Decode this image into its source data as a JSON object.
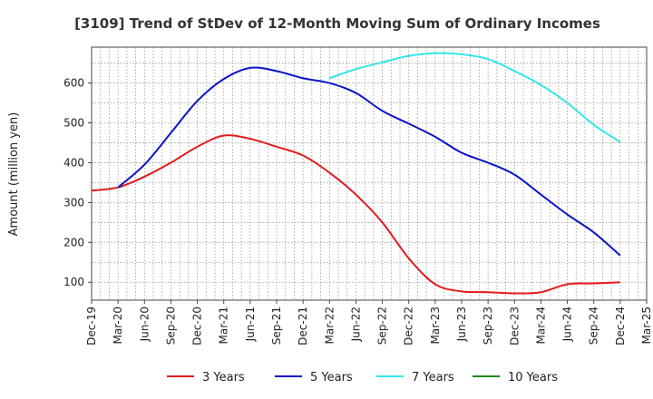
{
  "chart_data": {
    "type": "line",
    "title": "[3109]  Trend of StDev of 12-Month Moving Sum of Ordinary Incomes",
    "xlabel": "",
    "ylabel": "Amount (million yen)",
    "ylim": [
      55,
      690
    ],
    "yticks": [
      100,
      200,
      300,
      400,
      500,
      600
    ],
    "categories": [
      "Dec-19",
      "Mar-20",
      "Jun-20",
      "Sep-20",
      "Dec-20",
      "Mar-21",
      "Jun-21",
      "Sep-21",
      "Dec-21",
      "Mar-22",
      "Jun-22",
      "Sep-22",
      "Dec-22",
      "Mar-23",
      "Jun-23",
      "Sep-23",
      "Dec-23",
      "Mar-24",
      "Jun-24",
      "Sep-24",
      "Dec-24",
      "Mar-25"
    ],
    "grid": true,
    "legend_position": "bottom",
    "series": [
      {
        "name": "3 Years",
        "color": "#e31a1c",
        "values": [
          330,
          338,
          365,
          400,
          440,
          468,
          460,
          440,
          418,
          375,
          320,
          250,
          160,
          95,
          77,
          75,
          72,
          75,
          95,
          97,
          100,
          null
        ]
      },
      {
        "name": "5 Years",
        "color": "#0a14c8",
        "values": [
          null,
          338,
          395,
          475,
          555,
          610,
          638,
          630,
          612,
          600,
          575,
          530,
          498,
          465,
          425,
          400,
          370,
          320,
          270,
          225,
          167,
          null
        ]
      },
      {
        "name": "7 Years",
        "color": "#33e6e6",
        "values": [
          null,
          null,
          null,
          null,
          null,
          null,
          null,
          null,
          null,
          612,
          635,
          652,
          668,
          675,
          672,
          660,
          630,
          595,
          550,
          495,
          452,
          null
        ]
      },
      {
        "name": "10 Years",
        "color": "#1a8a1a",
        "values": [
          null,
          null,
          null,
          null,
          null,
          null,
          null,
          null,
          null,
          null,
          null,
          null,
          null,
          null,
          null,
          null,
          null,
          null,
          null,
          null,
          null,
          null
        ]
      }
    ]
  }
}
